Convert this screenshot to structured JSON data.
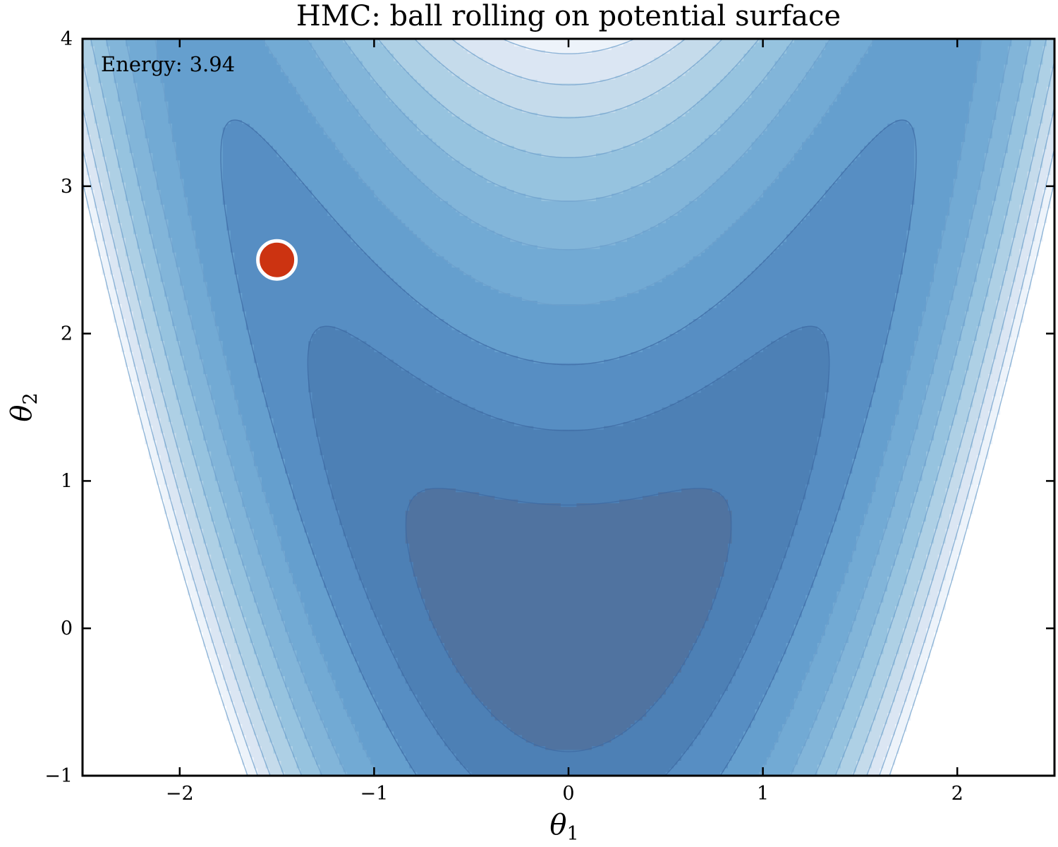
{
  "chart_data": {
    "type": "contour",
    "title": "HMC: ball rolling on potential surface",
    "xlabel": {
      "symbol": "θ",
      "subscript": "1"
    },
    "ylabel": {
      "symbol": "θ",
      "subscript": "2"
    },
    "xlim": [
      -2.5,
      2.5
    ],
    "ylim": [
      -1,
      4
    ],
    "xticks": [
      -2,
      -1,
      0,
      1,
      2
    ],
    "yticks": [
      -1,
      0,
      1,
      2,
      3,
      4
    ],
    "xtick_labels": [
      "−2",
      "−1",
      "0",
      "1",
      "2"
    ],
    "ytick_labels": [
      "−1",
      "0",
      "1",
      "2",
      "3",
      "4"
    ],
    "surface": "U(θ1, θ2) = 0.5·θ1² + 0.5·(θ2 − θ1²)²",
    "contour_levels": [
      0.35,
      0.9,
      1.6,
      2.4,
      3.3,
      4.2,
      5.1,
      6.0,
      6.8,
      7.6,
      8.3
    ],
    "colormap": "Blues",
    "ball": {
      "theta1": -1.5,
      "theta2": 2.5,
      "color": "#cc3311"
    },
    "annotation": {
      "label": "Energy:",
      "value": "3.94"
    },
    "grid": false
  }
}
